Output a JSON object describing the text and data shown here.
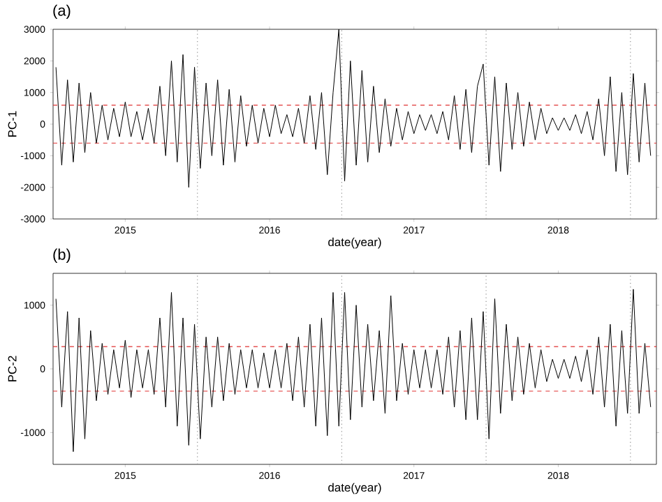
{
  "chart_data": [
    {
      "type": "line",
      "title": "(a)",
      "xlabel": "date(year)",
      "ylabel": "PC-1",
      "color": "#000000",
      "grid": false,
      "xlim": [
        2014.5,
        2018.68
      ],
      "xticks": [
        2015,
        2016,
        2017,
        2018
      ],
      "ylim": [
        -3000,
        3000
      ],
      "yticks": [
        -3000,
        -2000,
        -1000,
        0,
        1000,
        2000,
        3000
      ],
      "x": [
        2014.52,
        2014.56,
        2014.6,
        2014.64,
        2014.68,
        2014.72,
        2014.76,
        2014.8,
        2014.84,
        2014.88,
        2014.92,
        2014.96,
        2015.0,
        2015.04,
        2015.08,
        2015.12,
        2015.16,
        2015.2,
        2015.24,
        2015.28,
        2015.32,
        2015.36,
        2015.4,
        2015.44,
        2015.48,
        2015.52,
        2015.56,
        2015.6,
        2015.64,
        2015.68,
        2015.72,
        2015.76,
        2015.8,
        2015.84,
        2015.88,
        2015.92,
        2015.96,
        2016.0,
        2016.04,
        2016.08,
        2016.12,
        2016.16,
        2016.2,
        2016.24,
        2016.28,
        2016.32,
        2016.36,
        2016.4,
        2016.44,
        2016.48,
        2016.52,
        2016.56,
        2016.6,
        2016.64,
        2016.68,
        2016.72,
        2016.76,
        2016.8,
        2016.84,
        2016.88,
        2016.92,
        2016.96,
        2017.0,
        2017.04,
        2017.08,
        2017.12,
        2017.16,
        2017.2,
        2017.24,
        2017.28,
        2017.32,
        2017.36,
        2017.4,
        2017.44,
        2017.48,
        2017.52,
        2017.56,
        2017.6,
        2017.64,
        2017.68,
        2017.72,
        2017.76,
        2017.8,
        2017.84,
        2017.88,
        2017.92,
        2017.96,
        2018.0,
        2018.04,
        2018.08,
        2018.12,
        2018.16,
        2018.2,
        2018.24,
        2018.28,
        2018.32,
        2018.36,
        2018.4,
        2018.44,
        2018.48,
        2018.52,
        2018.56,
        2018.6,
        2018.64
      ],
      "values": [
        1800,
        -1300,
        1400,
        -1200,
        1300,
        -900,
        1000,
        -600,
        600,
        -500,
        500,
        -400,
        700,
        -400,
        400,
        -500,
        500,
        -600,
        1200,
        -1000,
        2000,
        -1200,
        2200,
        -2000,
        1800,
        -1400,
        1300,
        -1000,
        1400,
        -1300,
        1100,
        -1200,
        900,
        -700,
        600,
        -600,
        500,
        -400,
        600,
        -300,
        300,
        -400,
        500,
        -600,
        900,
        -800,
        1000,
        -1600,
        1000,
        3000,
        -1800,
        2000,
        -1300,
        1700,
        -1200,
        1200,
        -900,
        800,
        -700,
        500,
        -500,
        400,
        -300,
        300,
        -200,
        300,
        -300,
        400,
        -500,
        900,
        -800,
        1100,
        -900,
        1200,
        1900,
        -1300,
        1500,
        -1500,
        1300,
        -800,
        1000,
        -700,
        700,
        -500,
        500,
        -300,
        200,
        -200,
        200,
        -200,
        300,
        -300,
        400,
        -500,
        800,
        -1000,
        1500,
        -1500,
        1000,
        -1600,
        1600,
        -1200,
        1300,
        -1000
      ],
      "ref_lines": [
        {
          "axis": "y",
          "value": 600,
          "color": "#e03030",
          "line_style": "dashed"
        },
        {
          "axis": "y",
          "value": -600,
          "color": "#e03030",
          "line_style": "dashed"
        },
        {
          "axis": "x",
          "value": 2015.5,
          "color": "#909090",
          "line_style": "dotted"
        },
        {
          "axis": "x",
          "value": 2016.5,
          "color": "#909090",
          "line_style": "dotted"
        },
        {
          "axis": "x",
          "value": 2017.5,
          "color": "#909090",
          "line_style": "dotted"
        },
        {
          "axis": "x",
          "value": 2018.5,
          "color": "#909090",
          "line_style": "dotted"
        }
      ]
    },
    {
      "type": "line",
      "title": "(b)",
      "xlabel": "date(year)",
      "ylabel": "PC-2",
      "color": "#000000",
      "grid": false,
      "xlim": [
        2014.5,
        2018.68
      ],
      "xticks": [
        2015,
        2016,
        2017,
        2018
      ],
      "ylim": [
        -1500,
        1500
      ],
      "yticks": [
        -1000,
        0,
        1000
      ],
      "x": [
        2014.52,
        2014.56,
        2014.6,
        2014.64,
        2014.68,
        2014.72,
        2014.76,
        2014.8,
        2014.84,
        2014.88,
        2014.92,
        2014.96,
        2015.0,
        2015.04,
        2015.08,
        2015.12,
        2015.16,
        2015.2,
        2015.24,
        2015.28,
        2015.32,
        2015.36,
        2015.4,
        2015.44,
        2015.48,
        2015.52,
        2015.56,
        2015.6,
        2015.64,
        2015.68,
        2015.72,
        2015.76,
        2015.8,
        2015.84,
        2015.88,
        2015.92,
        2015.96,
        2016.0,
        2016.04,
        2016.08,
        2016.12,
        2016.16,
        2016.2,
        2016.24,
        2016.28,
        2016.32,
        2016.36,
        2016.4,
        2016.44,
        2016.48,
        2016.52,
        2016.56,
        2016.6,
        2016.64,
        2016.68,
        2016.72,
        2016.76,
        2016.8,
        2016.84,
        2016.88,
        2016.92,
        2016.96,
        2017.0,
        2017.04,
        2017.08,
        2017.12,
        2017.16,
        2017.2,
        2017.24,
        2017.28,
        2017.32,
        2017.36,
        2017.4,
        2017.44,
        2017.48,
        2017.52,
        2017.56,
        2017.6,
        2017.64,
        2017.68,
        2017.72,
        2017.76,
        2017.8,
        2017.84,
        2017.88,
        2017.92,
        2017.96,
        2018.0,
        2018.04,
        2018.08,
        2018.12,
        2018.16,
        2018.2,
        2018.24,
        2018.28,
        2018.32,
        2018.36,
        2018.4,
        2018.44,
        2018.48,
        2018.52,
        2018.56,
        2018.6,
        2018.64
      ],
      "values": [
        1100,
        -600,
        900,
        -1300,
        800,
        -1100,
        600,
        -500,
        400,
        -400,
        300,
        -300,
        450,
        -450,
        300,
        -300,
        300,
        -400,
        800,
        -600,
        1200,
        -900,
        800,
        -1200,
        700,
        -1100,
        500,
        -600,
        500,
        -500,
        400,
        -400,
        300,
        -300,
        300,
        -300,
        250,
        -300,
        300,
        -300,
        400,
        -500,
        500,
        -600,
        700,
        -900,
        800,
        -1050,
        1200,
        -900,
        1200,
        -800,
        1000,
        -600,
        700,
        -500,
        600,
        -700,
        1150,
        -500,
        400,
        -400,
        300,
        -300,
        300,
        -300,
        300,
        -400,
        500,
        -600,
        600,
        -800,
        800,
        -800,
        900,
        -1100,
        1100,
        -700,
        700,
        -500,
        500,
        -400,
        400,
        -300,
        300,
        -200,
        150,
        -150,
        150,
        -150,
        200,
        -200,
        300,
        -400,
        500,
        -600,
        700,
        -900,
        600,
        -700,
        1250,
        -700,
        400,
        -600
      ],
      "ref_lines": [
        {
          "axis": "y",
          "value": 350,
          "color": "#e03030",
          "line_style": "dashed"
        },
        {
          "axis": "y",
          "value": -350,
          "color": "#e03030",
          "line_style": "dashed"
        },
        {
          "axis": "x",
          "value": 2015.5,
          "color": "#909090",
          "line_style": "dotted"
        },
        {
          "axis": "x",
          "value": 2016.5,
          "color": "#909090",
          "line_style": "dotted"
        },
        {
          "axis": "x",
          "value": 2017.5,
          "color": "#909090",
          "line_style": "dotted"
        },
        {
          "axis": "x",
          "value": 2018.5,
          "color": "#909090",
          "line_style": "dotted"
        }
      ]
    }
  ]
}
